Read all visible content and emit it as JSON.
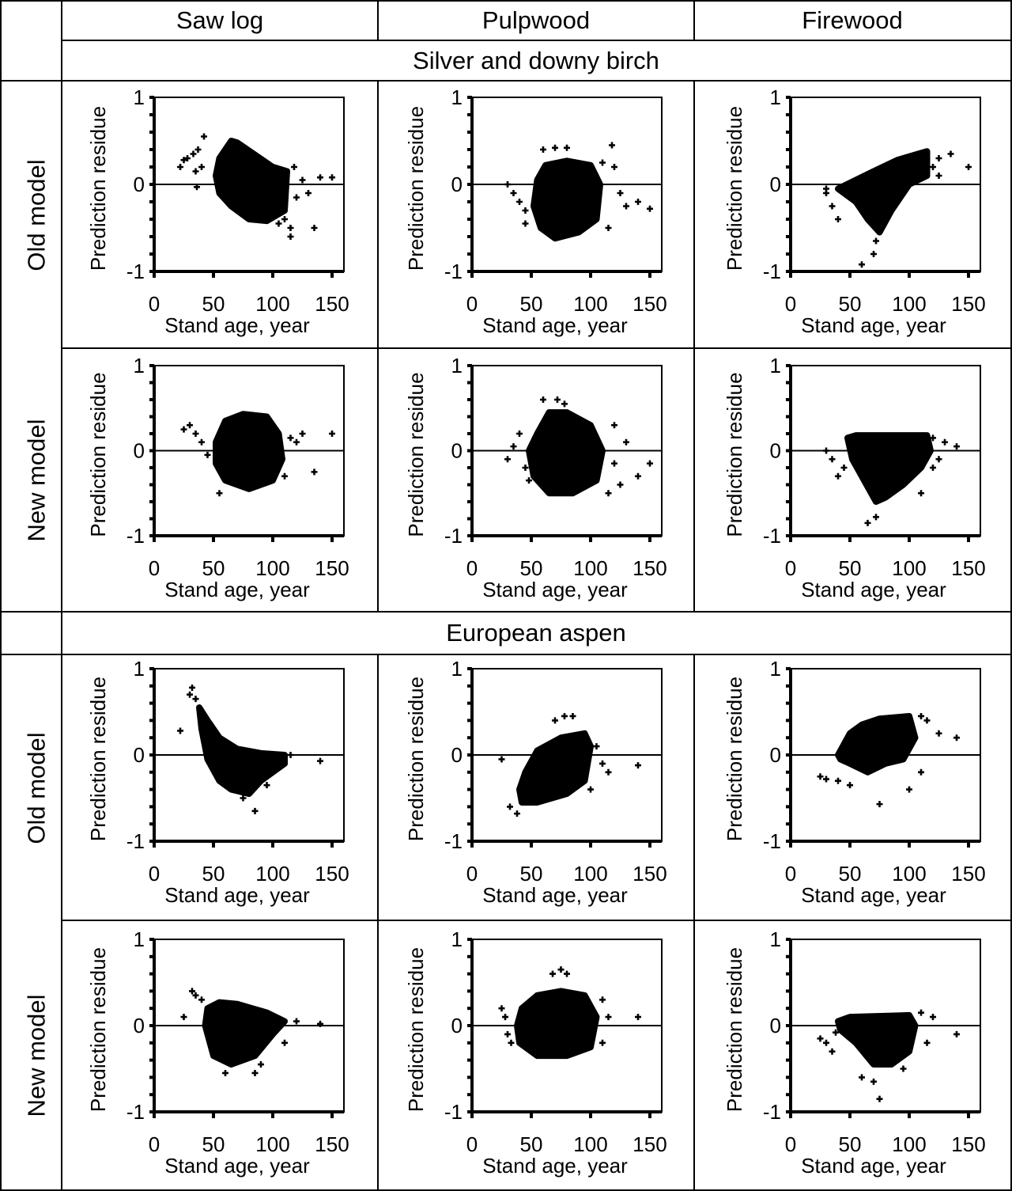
{
  "headers": {
    "columns": [
      "Saw log",
      "Pulpwood",
      "Firewood"
    ]
  },
  "species": [
    "Silver and downy birch",
    "European aspen"
  ],
  "row_labels": [
    "Old model",
    "New model",
    "Old model",
    "New model"
  ],
  "colors": {
    "marker": "#000000",
    "axis": "#000000",
    "background": "#ffffff"
  },
  "chart_data": [
    {
      "type": "scatter",
      "xlabel": "Stand age, year",
      "ylabel": "Prediction residue",
      "xlim": [
        0,
        160
      ],
      "ylim": [
        -1,
        1
      ],
      "xticks": [
        0,
        50,
        100,
        150
      ],
      "yticks": [
        -1,
        0,
        1
      ],
      "reference_line_y": 0,
      "dense_region": [
        [
          55,
          0.3
        ],
        [
          65,
          0.5
        ],
        [
          70,
          0.48
        ],
        [
          100,
          0.2
        ],
        [
          112,
          0.15
        ],
        [
          110,
          -0.3
        ],
        [
          95,
          -0.42
        ],
        [
          80,
          -0.4
        ],
        [
          65,
          -0.25
        ],
        [
          55,
          -0.1
        ],
        [
          52,
          0.1
        ]
      ],
      "points": [
        [
          22,
          0.2
        ],
        [
          25,
          0.28
        ],
        [
          28,
          0.3
        ],
        [
          33,
          0.35
        ],
        [
          37,
          0.4
        ],
        [
          42,
          0.55
        ],
        [
          36,
          -0.03
        ],
        [
          35,
          0.15
        ],
        [
          40,
          0.2
        ],
        [
          115,
          -0.5
        ],
        [
          115,
          -0.6
        ],
        [
          135,
          -0.5
        ],
        [
          140,
          0.08
        ],
        [
          150,
          0.08
        ],
        [
          120,
          -0.15
        ],
        [
          130,
          -0.1
        ],
        [
          125,
          0.05
        ],
        [
          118,
          0.2
        ],
        [
          105,
          -0.45
        ],
        [
          110,
          -0.4
        ]
      ]
    },
    {
      "type": "scatter",
      "xlabel": "Stand age, year",
      "ylabel": "Prediction residue",
      "xlim": [
        0,
        160
      ],
      "ylim": [
        -1,
        1
      ],
      "xticks": [
        0,
        50,
        100,
        150
      ],
      "yticks": [
        -1,
        0,
        1
      ],
      "reference_line_y": 0,
      "dense_region": [
        [
          55,
          0.05
        ],
        [
          62,
          0.22
        ],
        [
          80,
          0.27
        ],
        [
          100,
          0.22
        ],
        [
          108,
          0
        ],
        [
          105,
          -0.4
        ],
        [
          90,
          -0.55
        ],
        [
          70,
          -0.62
        ],
        [
          58,
          -0.5
        ],
        [
          52,
          -0.25
        ]
      ],
      "points": [
        [
          30,
          0
        ],
        [
          35,
          -0.1
        ],
        [
          40,
          -0.2
        ],
        [
          45,
          -0.3
        ],
        [
          60,
          0.4
        ],
        [
          70,
          0.42
        ],
        [
          80,
          0.42
        ],
        [
          118,
          0.45
        ],
        [
          120,
          0.2
        ],
        [
          125,
          -0.1
        ],
        [
          130,
          -0.25
        ],
        [
          150,
          -0.28
        ],
        [
          140,
          -0.2
        ],
        [
          115,
          -0.5
        ],
        [
          45,
          -0.45
        ],
        [
          110,
          0.25
        ]
      ]
    },
    {
      "type": "scatter",
      "xlabel": "Stand age, year",
      "ylabel": "Prediction residue",
      "xlim": [
        0,
        160
      ],
      "ylim": [
        -1,
        1
      ],
      "xticks": [
        0,
        50,
        100,
        150
      ],
      "yticks": [
        -1,
        0,
        1
      ],
      "reference_line_y": 0,
      "dense_region": [
        [
          40,
          -0.05
        ],
        [
          55,
          0.05
        ],
        [
          70,
          0.15
        ],
        [
          90,
          0.28
        ],
        [
          115,
          0.38
        ],
        [
          115,
          0.1
        ],
        [
          100,
          0
        ],
        [
          85,
          -0.3
        ],
        [
          75,
          -0.55
        ],
        [
          65,
          -0.4
        ],
        [
          55,
          -0.2
        ],
        [
          45,
          -0.1
        ]
      ],
      "points": [
        [
          30,
          -0.1
        ],
        [
          35,
          -0.25
        ],
        [
          40,
          -0.4
        ],
        [
          30,
          -0.05
        ],
        [
          70,
          -0.8
        ],
        [
          60,
          -0.92
        ],
        [
          125,
          0.3
        ],
        [
          135,
          0.35
        ],
        [
          150,
          0.2
        ],
        [
          120,
          0.2
        ],
        [
          125,
          0.1
        ],
        [
          72,
          -0.65
        ]
      ]
    },
    {
      "type": "scatter",
      "xlabel": "Stand age, year",
      "ylabel": "Prediction residue",
      "xlim": [
        0,
        160
      ],
      "ylim": [
        -1,
        1
      ],
      "xticks": [
        0,
        50,
        100,
        150
      ],
      "yticks": [
        -1,
        0,
        1
      ],
      "reference_line_y": 0,
      "dense_region": [
        [
          52,
          0.1
        ],
        [
          60,
          0.35
        ],
        [
          75,
          0.43
        ],
        [
          95,
          0.4
        ],
        [
          105,
          0.2
        ],
        [
          108,
          -0.1
        ],
        [
          100,
          -0.35
        ],
        [
          80,
          -0.45
        ],
        [
          60,
          -0.35
        ],
        [
          52,
          -0.15
        ]
      ],
      "points": [
        [
          25,
          0.25
        ],
        [
          30,
          0.3
        ],
        [
          35,
          0.2
        ],
        [
          40,
          0.1
        ],
        [
          45,
          -0.05
        ],
        [
          115,
          0.15
        ],
        [
          120,
          0.1
        ],
        [
          125,
          0.2
        ],
        [
          135,
          -0.25
        ],
        [
          150,
          0.2
        ],
        [
          55,
          -0.5
        ],
        [
          110,
          -0.3
        ]
      ]
    },
    {
      "type": "scatter",
      "xlabel": "Stand age, year",
      "ylabel": "Prediction residue",
      "xlim": [
        0,
        160
      ],
      "ylim": [
        -1,
        1
      ],
      "xticks": [
        0,
        50,
        100,
        150
      ],
      "yticks": [
        -1,
        0,
        1
      ],
      "reference_line_y": 0,
      "dense_region": [
        [
          55,
          0.2
        ],
        [
          65,
          0.45
        ],
        [
          80,
          0.45
        ],
        [
          100,
          0.3
        ],
        [
          110,
          0
        ],
        [
          105,
          -0.35
        ],
        [
          85,
          -0.5
        ],
        [
          65,
          -0.5
        ],
        [
          52,
          -0.3
        ],
        [
          48,
          0
        ]
      ],
      "points": [
        [
          30,
          -0.1
        ],
        [
          35,
          0.05
        ],
        [
          40,
          0.2
        ],
        [
          45,
          -0.2
        ],
        [
          48,
          -0.35
        ],
        [
          60,
          0.6
        ],
        [
          72,
          0.6
        ],
        [
          78,
          0.55
        ],
        [
          120,
          0.3
        ],
        [
          130,
          0.1
        ],
        [
          120,
          -0.15
        ],
        [
          140,
          -0.3
        ],
        [
          150,
          -0.15
        ],
        [
          115,
          -0.5
        ],
        [
          125,
          -0.4
        ]
      ]
    },
    {
      "type": "scatter",
      "xlabel": "Stand age, year",
      "ylabel": "Prediction residue",
      "xlim": [
        0,
        160
      ],
      "ylim": [
        -1,
        1
      ],
      "xticks": [
        0,
        50,
        100,
        150
      ],
      "yticks": [
        -1,
        0,
        1
      ],
      "reference_line_y": 0,
      "dense_region": [
        [
          48,
          0.15
        ],
        [
          55,
          0.18
        ],
        [
          115,
          0.18
        ],
        [
          118,
          0
        ],
        [
          110,
          -0.2
        ],
        [
          95,
          -0.4
        ],
        [
          80,
          -0.55
        ],
        [
          72,
          -0.6
        ],
        [
          62,
          -0.35
        ],
        [
          52,
          -0.1
        ]
      ],
      "points": [
        [
          30,
          0
        ],
        [
          35,
          -0.1
        ],
        [
          40,
          -0.3
        ],
        [
          45,
          -0.2
        ],
        [
          65,
          -0.85
        ],
        [
          72,
          -0.78
        ],
        [
          120,
          0.15
        ],
        [
          130,
          0.1
        ],
        [
          140,
          0.05
        ],
        [
          120,
          -0.2
        ],
        [
          110,
          -0.5
        ],
        [
          125,
          -0.1
        ]
      ]
    },
    {
      "type": "scatter",
      "xlabel": "Stand age, year",
      "ylabel": "Prediction residue",
      "xlim": [
        0,
        160
      ],
      "ylim": [
        -1,
        1
      ],
      "xticks": [
        0,
        50,
        100,
        150
      ],
      "yticks": [
        -1,
        0,
        1
      ],
      "reference_line_y": 0,
      "dense_region": [
        [
          38,
          0.55
        ],
        [
          45,
          0.4
        ],
        [
          55,
          0.2
        ],
        [
          70,
          0.07
        ],
        [
          90,
          0.02
        ],
        [
          110,
          0
        ],
        [
          110,
          -0.1
        ],
        [
          90,
          -0.3
        ],
        [
          80,
          -0.45
        ],
        [
          65,
          -0.4
        ],
        [
          55,
          -0.3
        ],
        [
          45,
          -0.05
        ],
        [
          40,
          0.3
        ]
      ],
      "points": [
        [
          22,
          0.28
        ],
        [
          30,
          0.7
        ],
        [
          32,
          0.78
        ],
        [
          35,
          0.65
        ],
        [
          85,
          -0.65
        ],
        [
          75,
          -0.5
        ],
        [
          95,
          -0.35
        ],
        [
          115,
          0
        ],
        [
          140,
          -0.07
        ],
        [
          100,
          -0.15
        ]
      ]
    },
    {
      "type": "scatter",
      "xlabel": "Stand age, year",
      "ylabel": "Prediction residue",
      "xlim": [
        0,
        160
      ],
      "ylim": [
        -1,
        1
      ],
      "xticks": [
        0,
        50,
        100,
        150
      ],
      "yticks": [
        -1,
        0,
        1
      ],
      "reference_line_y": 0,
      "dense_region": [
        [
          45,
          -0.2
        ],
        [
          55,
          0.05
        ],
        [
          75,
          0.2
        ],
        [
          95,
          0.25
        ],
        [
          100,
          0.1
        ],
        [
          95,
          -0.3
        ],
        [
          80,
          -0.45
        ],
        [
          55,
          -0.55
        ],
        [
          42,
          -0.55
        ],
        [
          40,
          -0.4
        ]
      ],
      "points": [
        [
          25,
          -0.05
        ],
        [
          32,
          -0.6
        ],
        [
          38,
          -0.68
        ],
        [
          70,
          0.4
        ],
        [
          78,
          0.45
        ],
        [
          85,
          0.45
        ],
        [
          105,
          0.1
        ],
        [
          110,
          -0.1
        ],
        [
          115,
          -0.2
        ],
        [
          140,
          -0.12
        ],
        [
          100,
          -0.4
        ]
      ]
    },
    {
      "type": "scatter",
      "xlabel": "Stand age, year",
      "ylabel": "Prediction residue",
      "xlim": [
        0,
        160
      ],
      "ylim": [
        -1,
        1
      ],
      "xticks": [
        0,
        50,
        100,
        150
      ],
      "yticks": [
        -1,
        0,
        1
      ],
      "reference_line_y": 0,
      "dense_region": [
        [
          40,
          0
        ],
        [
          50,
          0.25
        ],
        [
          60,
          0.35
        ],
        [
          75,
          0.42
        ],
        [
          100,
          0.45
        ],
        [
          105,
          0.2
        ],
        [
          95,
          -0.05
        ],
        [
          80,
          -0.1
        ],
        [
          65,
          -0.2
        ],
        [
          50,
          -0.1
        ],
        [
          42,
          -0.05
        ]
      ],
      "points": [
        [
          25,
          -0.25
        ],
        [
          30,
          -0.28
        ],
        [
          40,
          -0.3
        ],
        [
          50,
          -0.35
        ],
        [
          75,
          -0.57
        ],
        [
          110,
          0.45
        ],
        [
          115,
          0.4
        ],
        [
          125,
          0.25
        ],
        [
          140,
          0.2
        ],
        [
          110,
          -0.2
        ],
        [
          100,
          -0.4
        ]
      ]
    },
    {
      "type": "scatter",
      "xlabel": "Stand age, year",
      "ylabel": "Prediction residue",
      "xlim": [
        0,
        160
      ],
      "ylim": [
        -1,
        1
      ],
      "xticks": [
        0,
        50,
        100,
        150
      ],
      "yticks": [
        -1,
        0,
        1
      ],
      "reference_line_y": 0,
      "dense_region": [
        [
          45,
          0.2
        ],
        [
          55,
          0.27
        ],
        [
          70,
          0.25
        ],
        [
          95,
          0.15
        ],
        [
          110,
          0.05
        ],
        [
          100,
          -0.1
        ],
        [
          85,
          -0.35
        ],
        [
          65,
          -0.45
        ],
        [
          50,
          -0.35
        ],
        [
          43,
          0
        ]
      ],
      "points": [
        [
          25,
          0.1
        ],
        [
          32,
          0.4
        ],
        [
          35,
          0.35
        ],
        [
          40,
          0.3
        ],
        [
          60,
          -0.55
        ],
        [
          85,
          -0.55
        ],
        [
          90,
          -0.45
        ],
        [
          120,
          0.05
        ],
        [
          140,
          0.02
        ],
        [
          110,
          -0.2
        ]
      ]
    },
    {
      "type": "scatter",
      "xlabel": "Stand age, year",
      "ylabel": "Prediction residue",
      "xlim": [
        0,
        160
      ],
      "ylim": [
        -1,
        1
      ],
      "xticks": [
        0,
        50,
        100,
        150
      ],
      "yticks": [
        -1,
        0,
        1
      ],
      "reference_line_y": 0,
      "dense_region": [
        [
          42,
          0.2
        ],
        [
          55,
          0.35
        ],
        [
          75,
          0.4
        ],
        [
          95,
          0.35
        ],
        [
          105,
          0.1
        ],
        [
          100,
          -0.25
        ],
        [
          80,
          -0.35
        ],
        [
          55,
          -0.35
        ],
        [
          40,
          -0.2
        ],
        [
          38,
          0
        ]
      ],
      "points": [
        [
          25,
          0.2
        ],
        [
          28,
          0.1
        ],
        [
          30,
          -0.1
        ],
        [
          33,
          -0.2
        ],
        [
          68,
          0.6
        ],
        [
          75,
          0.65
        ],
        [
          80,
          0.6
        ],
        [
          110,
          0.3
        ],
        [
          115,
          0.1
        ],
        [
          140,
          0.1
        ],
        [
          110,
          -0.2
        ]
      ]
    },
    {
      "type": "scatter",
      "xlabel": "Stand age, year",
      "ylabel": "Prediction residue",
      "xlim": [
        0,
        160
      ],
      "ylim": [
        -1,
        1
      ],
      "xticks": [
        0,
        50,
        100,
        150
      ],
      "yticks": [
        -1,
        0,
        1
      ],
      "reference_line_y": 0,
      "dense_region": [
        [
          40,
          0.05
        ],
        [
          50,
          0.1
        ],
        [
          100,
          0.12
        ],
        [
          105,
          0
        ],
        [
          100,
          -0.3
        ],
        [
          85,
          -0.45
        ],
        [
          70,
          -0.45
        ],
        [
          55,
          -0.2
        ],
        [
          42,
          -0.05
        ]
      ],
      "points": [
        [
          25,
          -0.15
        ],
        [
          30,
          -0.2
        ],
        [
          35,
          -0.3
        ],
        [
          38,
          -0.08
        ],
        [
          60,
          -0.6
        ],
        [
          70,
          -0.65
        ],
        [
          75,
          -0.85
        ],
        [
          95,
          -0.5
        ],
        [
          110,
          0.15
        ],
        [
          120,
          0.1
        ],
        [
          140,
          -0.1
        ],
        [
          115,
          -0.2
        ]
      ]
    }
  ]
}
